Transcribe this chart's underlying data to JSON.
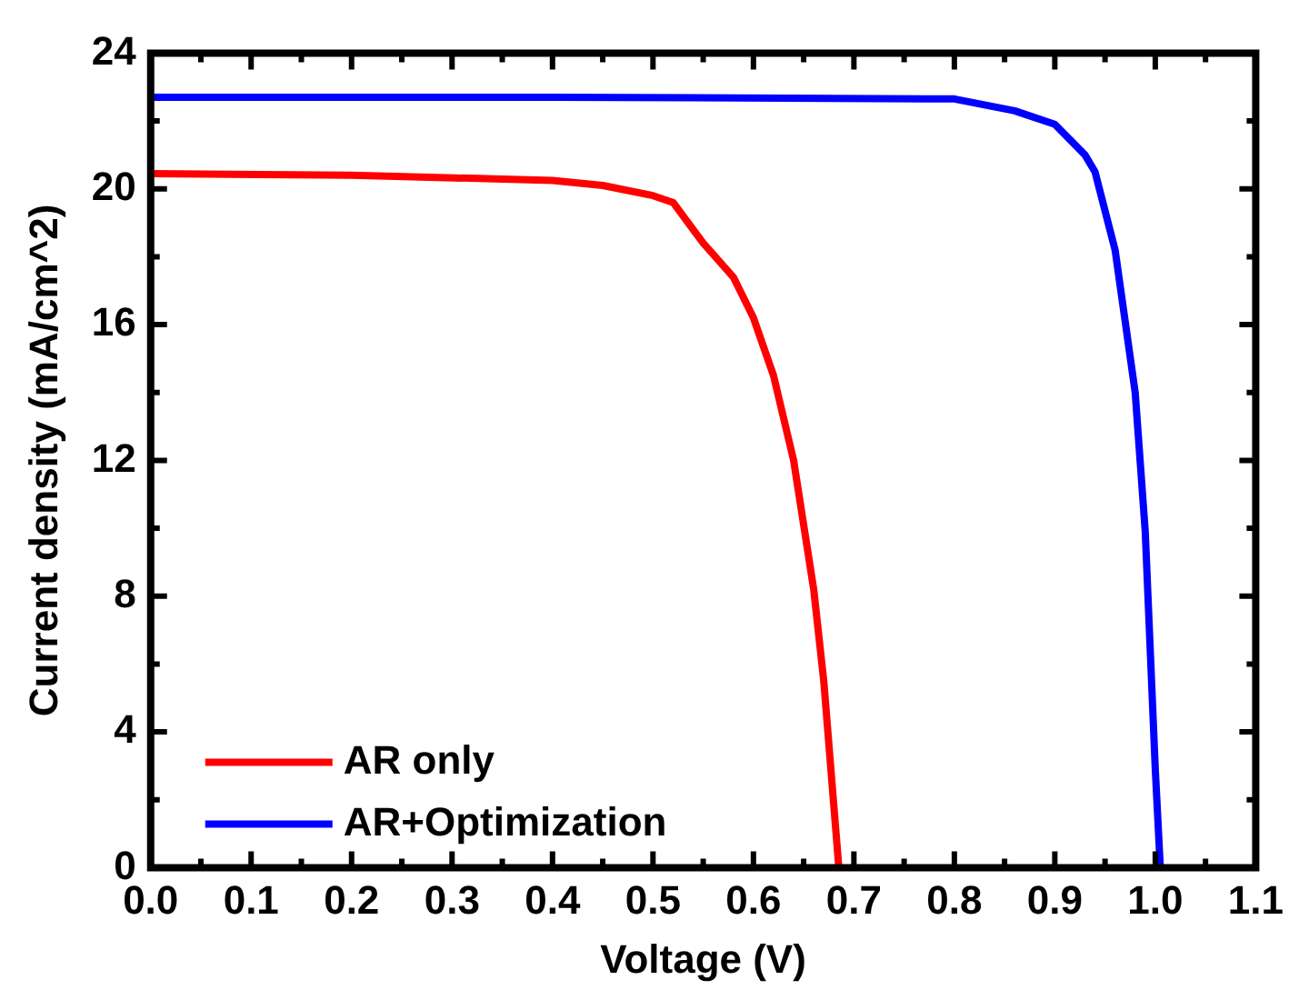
{
  "chart_data": {
    "type": "line",
    "xlabel": "Voltage (V)",
    "ylabel": "Current density (mA/cm^2)",
    "xlim": [
      0,
      1.1
    ],
    "xticks": [
      {
        "value": 0,
        "label": "0.0"
      },
      0.1,
      0.2,
      0.3,
      0.4,
      0.5,
      0.6,
      0.7,
      0.8,
      0.9,
      {
        "value": 1,
        "label": "1.0"
      },
      1.1
    ],
    "ylim": [
      0,
      24
    ],
    "yticks": [
      0,
      4,
      8,
      12,
      16,
      20,
      24
    ],
    "legend": "bottom left",
    "grid": false,
    "marker": "none",
    "line_style": "solid",
    "series": [
      {
        "name": "AR only",
        "color": "#ff0000",
        "x": [
          0,
          0.2,
          0.4,
          0.45,
          0.5,
          0.52,
          0.55,
          0.58,
          0.6,
          0.62,
          0.64,
          0.66,
          0.67,
          0.685
        ],
        "values": [
          20.45,
          20.4,
          20.25,
          20.1,
          19.8,
          19.6,
          18.4,
          17.4,
          16.2,
          14.5,
          12.0,
          8.2,
          5.5,
          0
        ]
      },
      {
        "name": "AR+Optimization",
        "color": "#0000ff",
        "x": [
          0,
          0.4,
          0.8,
          0.86,
          0.9,
          0.93,
          0.94,
          0.96,
          0.98,
          0.99,
          1.0,
          1.005
        ],
        "values": [
          22.7,
          22.7,
          22.65,
          22.3,
          21.9,
          21.0,
          20.5,
          18.2,
          14.0,
          9.9,
          2.9,
          0
        ]
      }
    ]
  }
}
